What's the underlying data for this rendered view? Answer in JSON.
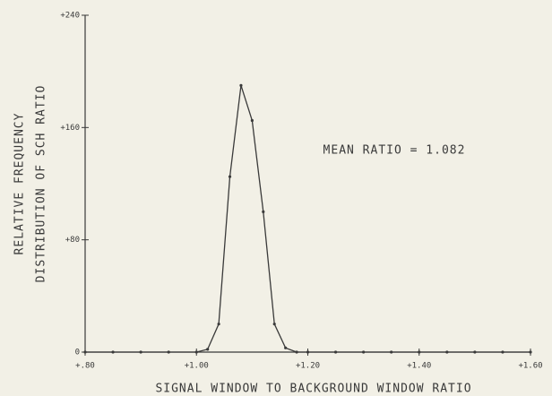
{
  "chart_data": {
    "type": "line",
    "x_label": "SIGNAL WINDOW TO BACKGROUND WINDOW RATIO",
    "y_label": [
      "RELATIVE FREQUENCY",
      "DISTRIBUTION OF SCH RATIO"
    ],
    "annotation": "MEAN RATIO = 1.082",
    "x": [
      0.8,
      0.85,
      0.9,
      0.95,
      1.0,
      1.02,
      1.04,
      1.06,
      1.08,
      1.1,
      1.12,
      1.14,
      1.16,
      1.18,
      1.2,
      1.25,
      1.3,
      1.35,
      1.4,
      1.45,
      1.5,
      1.55,
      1.6
    ],
    "series": [
      {
        "color": "#3a3a3a",
        "values": [
          0,
          0,
          0,
          0,
          0,
          2,
          20,
          125,
          190,
          165,
          100,
          20,
          3,
          0,
          0,
          0,
          0,
          0,
          0,
          0,
          0,
          0,
          0
        ]
      }
    ],
    "xlim": [
      0.8,
      1.6
    ],
    "xticks": [
      {
        "value": 0.8,
        "label": "+.80"
      },
      {
        "value": 1.0,
        "label": "+1.00"
      },
      {
        "value": 1.2,
        "label": "+1.20"
      },
      {
        "value": 1.4,
        "label": "+1.40"
      },
      {
        "value": 1.6,
        "label": "+1.60"
      }
    ],
    "ylim": [
      0,
      240
    ],
    "yticks": [
      0,
      {
        "value": 80,
        "label": "+80"
      },
      {
        "value": 160,
        "label": "+160"
      },
      {
        "value": 240,
        "label": "+240"
      }
    ],
    "grid": false
  }
}
